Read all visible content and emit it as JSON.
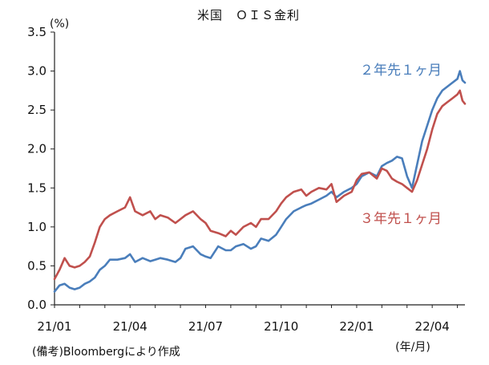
{
  "chart_data": {
    "type": "line",
    "title": "米国　ＯＩＳ金利",
    "y_unit": "(%)",
    "x_unit": "(年/月)",
    "note": "(備考)Bloombergにより作成",
    "ylim": [
      0.0,
      3.5
    ],
    "y_ticks": [
      "0.0",
      "0.5",
      "1.0",
      "1.5",
      "2.0",
      "2.5",
      "3.0",
      "3.5"
    ],
    "x_ticks": [
      "21/01",
      "21/04",
      "21/07",
      "21/10",
      "22/01",
      "22/04"
    ],
    "grid": false,
    "x_index_range": [
      0,
      16.3
    ],
    "series": [
      {
        "name": "２年先１ヶ月",
        "color": "#4a7ebb",
        "x": [
          0,
          0.2,
          0.4,
          0.6,
          0.8,
          1.0,
          1.2,
          1.4,
          1.6,
          1.8,
          2.0,
          2.2,
          2.5,
          2.8,
          3.0,
          3.2,
          3.5,
          3.8,
          4.0,
          4.2,
          4.5,
          4.8,
          5.0,
          5.2,
          5.5,
          5.8,
          6.0,
          6.2,
          6.5,
          6.8,
          7.0,
          7.2,
          7.5,
          7.8,
          8.0,
          8.2,
          8.5,
          8.8,
          9.0,
          9.2,
          9.5,
          9.8,
          10.0,
          10.2,
          10.5,
          10.8,
          11.0,
          11.2,
          11.5,
          11.8,
          12.0,
          12.2,
          12.5,
          12.8,
          13.0,
          13.2,
          13.4,
          13.6,
          13.8,
          14.0,
          14.2,
          14.4,
          14.6,
          14.8,
          15.0,
          15.2,
          15.4,
          15.6,
          15.8,
          16.0,
          16.1,
          16.2,
          16.3
        ],
        "values": [
          0.17,
          0.25,
          0.27,
          0.22,
          0.2,
          0.22,
          0.27,
          0.3,
          0.35,
          0.45,
          0.5,
          0.58,
          0.58,
          0.6,
          0.65,
          0.55,
          0.6,
          0.56,
          0.58,
          0.6,
          0.58,
          0.55,
          0.6,
          0.72,
          0.75,
          0.65,
          0.62,
          0.6,
          0.75,
          0.7,
          0.7,
          0.75,
          0.78,
          0.72,
          0.75,
          0.85,
          0.82,
          0.9,
          1.0,
          1.1,
          1.2,
          1.25,
          1.28,
          1.3,
          1.35,
          1.4,
          1.45,
          1.38,
          1.45,
          1.5,
          1.55,
          1.65,
          1.7,
          1.65,
          1.78,
          1.82,
          1.85,
          1.9,
          1.88,
          1.65,
          1.5,
          1.8,
          2.1,
          2.3,
          2.5,
          2.65,
          2.75,
          2.8,
          2.85,
          2.9,
          3.0,
          2.88,
          2.85
        ]
      },
      {
        "name": "３年先１ヶ月",
        "color": "#c0504d",
        "x": [
          0,
          0.2,
          0.4,
          0.6,
          0.8,
          1.0,
          1.2,
          1.4,
          1.6,
          1.8,
          2.0,
          2.2,
          2.5,
          2.8,
          3.0,
          3.2,
          3.5,
          3.8,
          4.0,
          4.2,
          4.5,
          4.8,
          5.0,
          5.2,
          5.5,
          5.8,
          6.0,
          6.2,
          6.5,
          6.8,
          7.0,
          7.2,
          7.5,
          7.8,
          8.0,
          8.2,
          8.5,
          8.8,
          9.0,
          9.2,
          9.5,
          9.8,
          10.0,
          10.2,
          10.5,
          10.8,
          11.0,
          11.2,
          11.5,
          11.8,
          12.0,
          12.2,
          12.5,
          12.8,
          13.0,
          13.2,
          13.4,
          13.6,
          13.8,
          14.0,
          14.2,
          14.4,
          14.6,
          14.8,
          15.0,
          15.2,
          15.4,
          15.6,
          15.8,
          16.0,
          16.1,
          16.2,
          16.3
        ],
        "values": [
          0.33,
          0.45,
          0.6,
          0.5,
          0.48,
          0.5,
          0.55,
          0.62,
          0.8,
          1.0,
          1.1,
          1.15,
          1.2,
          1.25,
          1.38,
          1.2,
          1.15,
          1.2,
          1.1,
          1.15,
          1.12,
          1.05,
          1.1,
          1.15,
          1.2,
          1.1,
          1.05,
          0.95,
          0.92,
          0.88,
          0.95,
          0.9,
          1.0,
          1.05,
          1.0,
          1.1,
          1.1,
          1.2,
          1.3,
          1.38,
          1.45,
          1.48,
          1.4,
          1.45,
          1.5,
          1.48,
          1.55,
          1.32,
          1.4,
          1.45,
          1.6,
          1.68,
          1.7,
          1.62,
          1.75,
          1.72,
          1.62,
          1.58,
          1.55,
          1.5,
          1.45,
          1.6,
          1.8,
          2.0,
          2.25,
          2.45,
          2.55,
          2.6,
          2.65,
          2.7,
          2.75,
          2.62,
          2.58
        ]
      }
    ]
  }
}
